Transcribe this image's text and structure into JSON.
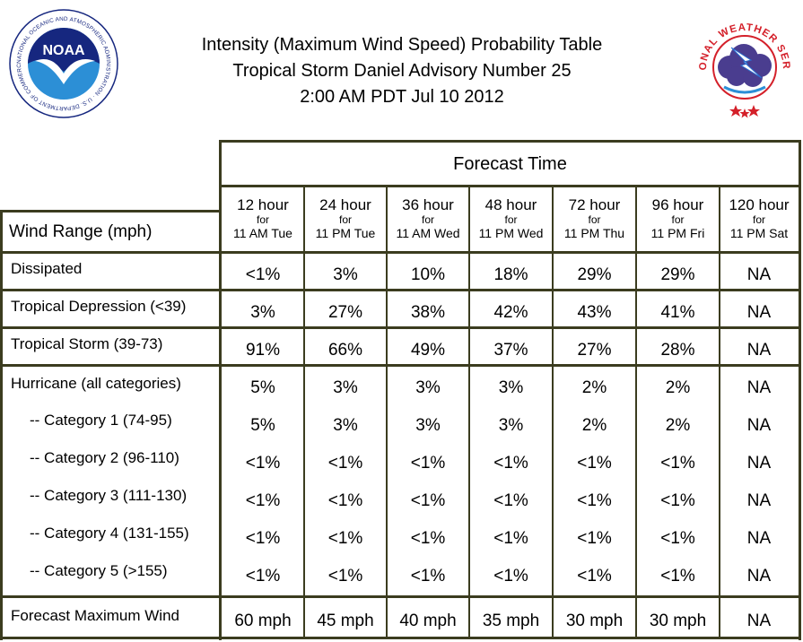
{
  "title": {
    "line1": "Intensity (Maximum Wind Speed) Probability Table",
    "line2": "Tropical Storm Daniel Advisory Number 25",
    "line3": "2:00 AM PDT Jul 10 2012"
  },
  "logos": {
    "noaa": {
      "text": "NOAA",
      "ring_text": "NATIONAL OCEANIC AND ATMOSPHERIC ADMINISTRATION · U.S. DEPARTMENT OF COMMERCE",
      "colors": {
        "navy": "#16277f",
        "sky": "#2c8fd6"
      }
    },
    "nws": {
      "ring_text": "NATIONAL WEATHER SERVICE",
      "colors": {
        "red": "#d4202a",
        "purple": "#4a3d8f"
      }
    }
  },
  "table": {
    "forecast_time_label": "Forecast Time",
    "wind_range_label": "Wind Range (mph)",
    "for_label": "for",
    "columns": [
      {
        "hour": "12 hour",
        "when": "11 AM Tue"
      },
      {
        "hour": "24 hour",
        "when": "11 PM Tue"
      },
      {
        "hour": "36 hour",
        "when": "11 AM Wed"
      },
      {
        "hour": "48 hour",
        "when": "11 PM Wed"
      },
      {
        "hour": "72 hour",
        "when": "11 PM Thu"
      },
      {
        "hour": "96 hour",
        "when": "11 PM Fri"
      },
      {
        "hour": "120 hour",
        "when": "11 PM Sat"
      }
    ],
    "rows": [
      {
        "label": "Dissipated",
        "values": [
          "<1%",
          "3%",
          "10%",
          "18%",
          "29%",
          "29%",
          "NA"
        ]
      },
      {
        "label": "Tropical Depression (<39)",
        "values": [
          "3%",
          "27%",
          "38%",
          "42%",
          "43%",
          "41%",
          "NA"
        ]
      },
      {
        "label": "Tropical Storm (39-73)",
        "values": [
          "91%",
          "66%",
          "49%",
          "37%",
          "27%",
          "28%",
          "NA"
        ]
      },
      {
        "label": "Hurricane (all categories)",
        "values": [
          "5%",
          "3%",
          "3%",
          "3%",
          "2%",
          "2%",
          "NA"
        ]
      },
      {
        "label": "-- Category 1 (74-95)",
        "values": [
          "5%",
          "3%",
          "3%",
          "3%",
          "2%",
          "2%",
          "NA"
        ]
      },
      {
        "label": "-- Category 2 (96-110)",
        "values": [
          "<1%",
          "<1%",
          "<1%",
          "<1%",
          "<1%",
          "<1%",
          "NA"
        ]
      },
      {
        "label": "-- Category 3 (111-130)",
        "values": [
          "<1%",
          "<1%",
          "<1%",
          "<1%",
          "<1%",
          "<1%",
          "NA"
        ]
      },
      {
        "label": "-- Category 4 (131-155)",
        "values": [
          "<1%",
          "<1%",
          "<1%",
          "<1%",
          "<1%",
          "<1%",
          "NA"
        ]
      },
      {
        "label": "-- Category 5 (>155)",
        "values": [
          "<1%",
          "<1%",
          "<1%",
          "<1%",
          "<1%",
          "<1%",
          "NA"
        ]
      },
      {
        "label": "Forecast Maximum Wind",
        "values": [
          "60 mph",
          "45 mph",
          "40 mph",
          "35 mph",
          "30 mph",
          "30 mph",
          "NA"
        ]
      }
    ]
  },
  "colors": {
    "grid": "#3b3c1f",
    "background": "#ffffff",
    "text": "#000000"
  }
}
